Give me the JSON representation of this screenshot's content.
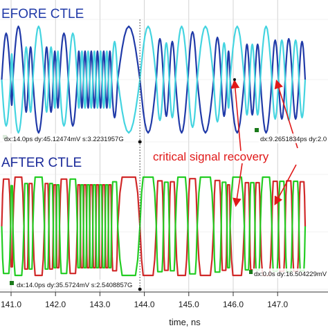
{
  "chart_data": [
    {
      "type": "line",
      "title": "EFORE CTLE",
      "x": [
        140.75,
        147.7
      ],
      "xlabel": "time, ns",
      "ylabel": "",
      "series": [
        {
          "color": "#203aa8",
          "edges": [
            140.79,
            140.99,
            141.04,
            141.29,
            141.39,
            141.49,
            141.75,
            141.85,
            141.95,
            142.02,
            142.09,
            142.29,
            142.49,
            142.56,
            142.63,
            142.7,
            142.77,
            142.84,
            142.91,
            142.98,
            143.05,
            143.12,
            143.19,
            143.26,
            143.4,
            143.9,
            144.27,
            144.43,
            144.56,
            144.7,
            144.98,
            145.19,
            145.56,
            145.73,
            145.86,
            145.93,
            146.25,
            146.37,
            146.49,
            146.61,
            146.87,
            147.02,
            147.17,
            147.33,
            147.48,
            147.62
          ]
        },
        {
          "color": "#44d4e0",
          "edges": [
            140.79,
            140.99,
            141.04,
            141.29,
            141.39,
            141.49,
            141.75,
            141.85,
            141.95,
            142.02,
            142.09,
            142.29,
            142.49,
            142.56,
            142.63,
            142.7,
            142.77,
            142.84,
            142.91,
            142.98,
            143.05,
            143.12,
            143.19,
            143.26,
            143.4,
            143.9,
            144.27,
            144.43,
            144.56,
            144.7,
            144.98,
            145.19,
            145.56,
            145.73,
            145.86,
            145.93,
            146.25,
            146.37,
            146.49,
            146.61,
            146.87,
            147.02,
            147.17,
            147.33,
            147.48,
            147.62
          ]
        }
      ],
      "marker_readouts": [
        "dx:14.0ps dy:45.12474mV s:3.2231957G",
        "dx:9.2651834ps dy:2.0"
      ]
    },
    {
      "type": "line",
      "title": "AFTER CTLE",
      "x": [
        140.75,
        147.7
      ],
      "xlabel": "time, ns",
      "ylabel": "",
      "series": [
        {
          "color": "#d02828",
          "edges": [
            140.79,
            140.99,
            141.04,
            141.29,
            141.39,
            141.49,
            141.75,
            141.85,
            141.95,
            142.02,
            142.09,
            142.29,
            142.49,
            142.56,
            142.63,
            142.7,
            142.77,
            142.84,
            142.91,
            142.98,
            143.05,
            143.12,
            143.19,
            143.26,
            143.4,
            143.9,
            144.27,
            144.43,
            144.56,
            144.7,
            144.98,
            145.19,
            145.56,
            145.73,
            145.86,
            145.93,
            146.25,
            146.37,
            146.49,
            146.61,
            146.87,
            147.02,
            147.17,
            147.33,
            147.48,
            147.62
          ]
        },
        {
          "color": "#22cc22",
          "edges": [
            140.79,
            140.99,
            141.04,
            141.29,
            141.39,
            141.49,
            141.75,
            141.85,
            141.95,
            142.02,
            142.09,
            142.29,
            142.49,
            142.56,
            142.63,
            142.7,
            142.77,
            142.84,
            142.91,
            142.98,
            143.05,
            143.12,
            143.19,
            143.26,
            143.4,
            143.9,
            144.27,
            144.43,
            144.56,
            144.7,
            144.98,
            145.19,
            145.56,
            145.73,
            145.86,
            145.93,
            146.25,
            146.37,
            146.49,
            146.61,
            146.87,
            147.02,
            147.17,
            147.33,
            147.48,
            147.62
          ]
        }
      ],
      "marker_readouts": [
        "dx:14.0ps dy:35.5724mV s:2.5408857G",
        "dx:0.0s dy:16.504229mV"
      ]
    }
  ],
  "x_axis": {
    "ticks": [
      141.0,
      142.0,
      143.0,
      144.0,
      145.0,
      146.0,
      147.0
    ],
    "tick_labels": [
      "141.0",
      "142.0",
      "143.0",
      "144.0",
      "145.0",
      "146.0",
      "147.0"
    ],
    "label": "time, ns"
  },
  "annotation": {
    "text": "critical signal recovery",
    "color": "#e01818",
    "arrow_targets_ns": [
      146.0,
      146.95
    ]
  },
  "cursor_ns": 143.9,
  "colors": {
    "before_title": "#203aa8",
    "after_title": "#1a2a9a",
    "grid": "#c8c8c8"
  }
}
